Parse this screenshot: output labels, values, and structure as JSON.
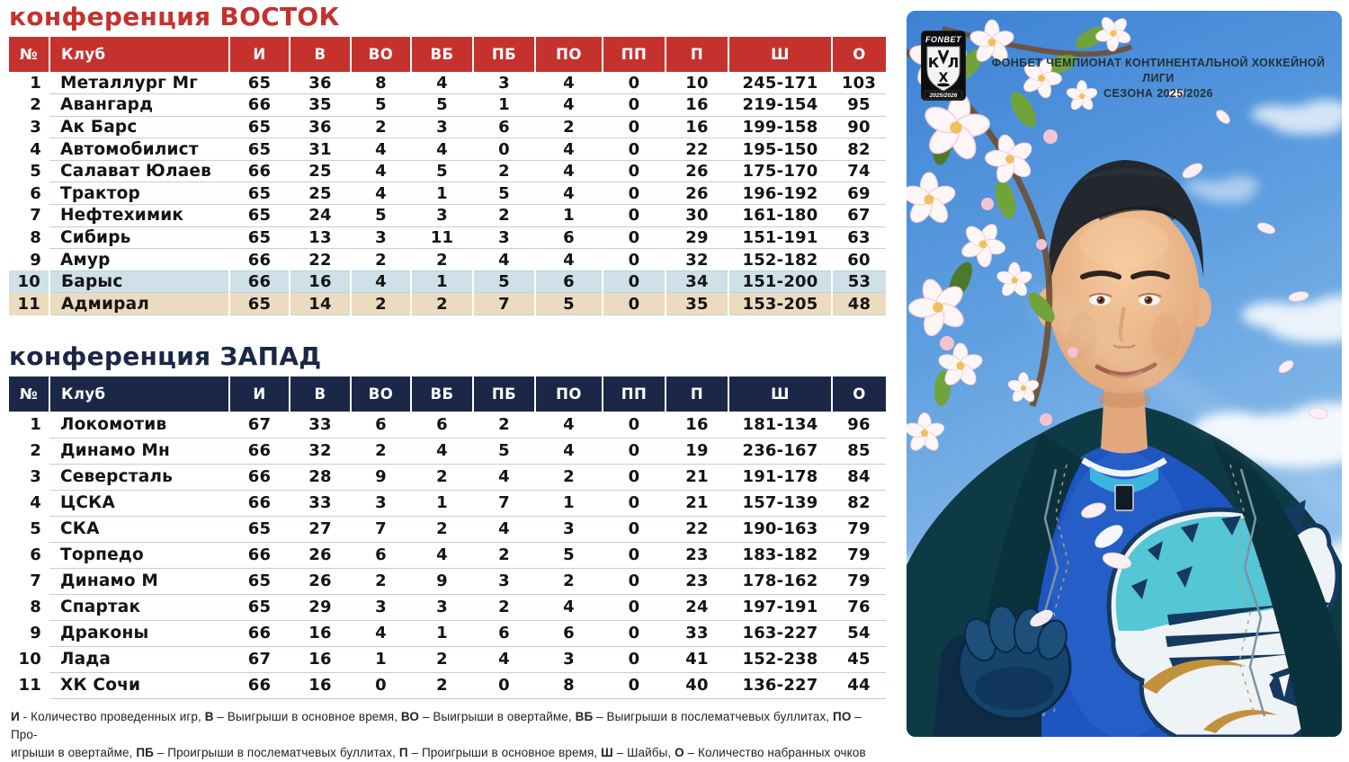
{
  "colors": {
    "header_east": "#c5322e",
    "header_west": "#1b2746",
    "title_east": "#c5322e",
    "title_west": "#1b2746",
    "row_highlight_barys": "#cfe0e9",
    "row_highlight_admiral": "#eddbbf",
    "row_separator": "#b5d4e2"
  },
  "east": {
    "title": "конференция ВОСТОК",
    "columns": [
      "№",
      "Клуб",
      "И",
      "В",
      "ВО",
      "ВБ",
      "ПБ",
      "ПО",
      "ПП",
      "П",
      "Ш",
      "О"
    ],
    "rows": [
      {
        "pos": "1",
        "club": "Металлург Мг",
        "values": [
          "65",
          "36",
          "8",
          "4",
          "3",
          "4",
          "0",
          "10",
          "245-171",
          "103"
        ],
        "highlight": ""
      },
      {
        "pos": "2",
        "club": "Авангард",
        "values": [
          "66",
          "35",
          "5",
          "5",
          "1",
          "4",
          "0",
          "16",
          "219-154",
          "95"
        ],
        "highlight": ""
      },
      {
        "pos": "3",
        "club": "Ак Барс",
        "values": [
          "65",
          "36",
          "2",
          "3",
          "6",
          "2",
          "0",
          "16",
          "199-158",
          "90"
        ],
        "highlight": ""
      },
      {
        "pos": "4",
        "club": "Автомобилист",
        "values": [
          "65",
          "31",
          "4",
          "4",
          "0",
          "4",
          "0",
          "22",
          "195-150",
          "82"
        ],
        "highlight": ""
      },
      {
        "pos": "5",
        "club": "Салават Юлаев",
        "values": [
          "66",
          "25",
          "4",
          "5",
          "2",
          "4",
          "0",
          "26",
          "175-170",
          "74"
        ],
        "highlight": ""
      },
      {
        "pos": "6",
        "club": "Трактор",
        "values": [
          "65",
          "25",
          "4",
          "1",
          "5",
          "4",
          "0",
          "26",
          "196-192",
          "69"
        ],
        "highlight": ""
      },
      {
        "pos": "7",
        "club": "Нефтехимик",
        "values": [
          "65",
          "24",
          "5",
          "3",
          "2",
          "1",
          "0",
          "30",
          "161-180",
          "67"
        ],
        "highlight": ""
      },
      {
        "pos": "8",
        "club": "Сибирь",
        "values": [
          "65",
          "13",
          "3",
          "11",
          "3",
          "6",
          "0",
          "29",
          "151-191",
          "63"
        ],
        "highlight": ""
      },
      {
        "pos": "9",
        "club": "Амур",
        "values": [
          "66",
          "22",
          "2",
          "2",
          "4",
          "4",
          "0",
          "32",
          "152-182",
          "60"
        ],
        "highlight": ""
      },
      {
        "pos": "10",
        "club": "Барыс",
        "values": [
          "66",
          "16",
          "4",
          "1",
          "5",
          "6",
          "0",
          "34",
          "151-200",
          "53"
        ],
        "highlight": "barys"
      },
      {
        "pos": "11",
        "club": "Адмирал",
        "values": [
          "65",
          "14",
          "2",
          "2",
          "7",
          "5",
          "0",
          "35",
          "153-205",
          "48"
        ],
        "highlight": "admiral"
      }
    ]
  },
  "west": {
    "title": "конференция ЗАПАД",
    "columns": [
      "№",
      "Клуб",
      "И",
      "В",
      "ВО",
      "ВБ",
      "ПБ",
      "ПО",
      "ПП",
      "П",
      "Ш",
      "О"
    ],
    "rows": [
      {
        "pos": "1",
        "club": "Локомотив",
        "values": [
          "67",
          "33",
          "6",
          "6",
          "2",
          "4",
          "0",
          "16",
          "181-134",
          "96"
        ],
        "highlight": ""
      },
      {
        "pos": "2",
        "club": "Динамо Мн",
        "values": [
          "66",
          "32",
          "2",
          "4",
          "5",
          "4",
          "0",
          "19",
          "236-167",
          "85"
        ],
        "highlight": ""
      },
      {
        "pos": "3",
        "club": "Северсталь",
        "values": [
          "66",
          "28",
          "9",
          "2",
          "4",
          "2",
          "0",
          "21",
          "191-178",
          "84"
        ],
        "highlight": ""
      },
      {
        "pos": "4",
        "club": "ЦСКА",
        "values": [
          "66",
          "33",
          "3",
          "1",
          "7",
          "1",
          "0",
          "21",
          "157-139",
          "82"
        ],
        "highlight": ""
      },
      {
        "pos": "5",
        "club": "СКА",
        "values": [
          "65",
          "27",
          "7",
          "2",
          "4",
          "3",
          "0",
          "22",
          "190-163",
          "79"
        ],
        "highlight": ""
      },
      {
        "pos": "6",
        "club": "Торпедо",
        "values": [
          "66",
          "26",
          "6",
          "4",
          "2",
          "5",
          "0",
          "23",
          "183-182",
          "79"
        ],
        "highlight": ""
      },
      {
        "pos": "7",
        "club": "Динамо М",
        "values": [
          "65",
          "26",
          "2",
          "9",
          "3",
          "2",
          "0",
          "23",
          "178-162",
          "79"
        ],
        "highlight": ""
      },
      {
        "pos": "8",
        "club": "Спартак",
        "values": [
          "65",
          "29",
          "3",
          "3",
          "2",
          "4",
          "0",
          "24",
          "197-191",
          "76"
        ],
        "highlight": ""
      },
      {
        "pos": "9",
        "club": "Драконы",
        "values": [
          "66",
          "16",
          "4",
          "1",
          "6",
          "6",
          "0",
          "33",
          "163-227",
          "54"
        ],
        "highlight": ""
      },
      {
        "pos": "10",
        "club": "Лада",
        "values": [
          "67",
          "16",
          "1",
          "2",
          "4",
          "3",
          "0",
          "41",
          "152-238",
          "45"
        ],
        "highlight": ""
      },
      {
        "pos": "11",
        "club": "ХК Сочи",
        "values": [
          "66",
          "16",
          "0",
          "2",
          "0",
          "8",
          "0",
          "40",
          "136-227",
          "44"
        ],
        "highlight": ""
      }
    ]
  },
  "legend": {
    "lines": [
      [
        {
          "b": "И",
          "t": " - Количество проведенных игр, "
        },
        {
          "b": "В",
          "t": " – Выигрыши в основное время, "
        },
        {
          "b": "ВО",
          "t": " – Выигрыши в овертайме, "
        },
        {
          "b": "ВБ",
          "t": " – Выигрыши в послематчевых буллитах, "
        },
        {
          "b": "ПО",
          "t": " – Про-"
        }
      ],
      [
        {
          "b": "",
          "t": "игрыши в овертайме, "
        },
        {
          "b": "ПБ",
          "t": " – Проигрыши в послематчевых буллитах, "
        },
        {
          "b": "П",
          "t": " – Проигрыши в основное время, "
        },
        {
          "b": "Ш",
          "t": " – Шайбы, "
        },
        {
          "b": "О",
          "t": " – Количество набранных очков"
        }
      ]
    ]
  },
  "poster": {
    "title_line1": "ФОНБЕТ ЧЕМПИОНАТ КОНТИНЕНТАЛЬНОЙ ХОККЕЙНОЙ ЛИГИ",
    "title_line2": "СЕЗОНА 2025/2026",
    "badge": {
      "sponsor": "FONBET",
      "letter_left": "К",
      "letter_right": "Л",
      "letter_bottom": "Х",
      "season": "2025/2026"
    }
  }
}
